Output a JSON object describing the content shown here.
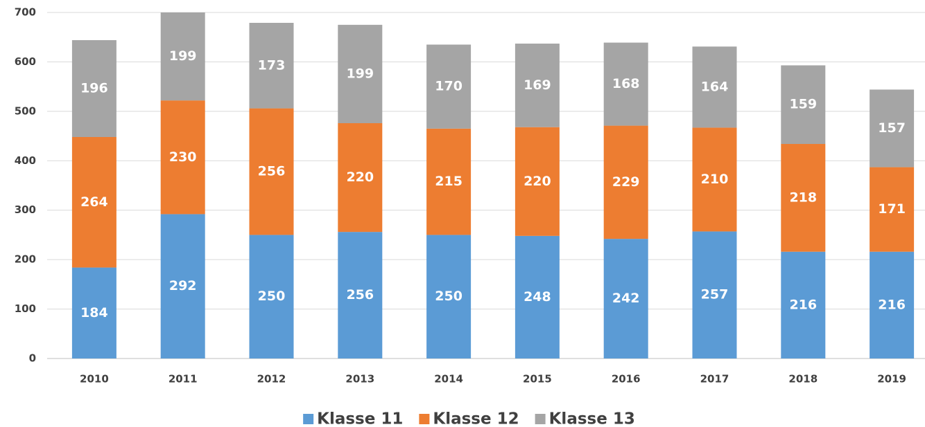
{
  "chart_data": {
    "type": "bar",
    "stacked": true,
    "categories": [
      "2010",
      "2011",
      "2012",
      "2013",
      "2014",
      "2015",
      "2016",
      "2017",
      "2018",
      "2019"
    ],
    "series": [
      {
        "name": "Klasse 11",
        "color": "#5b9bd5",
        "values": [
          184,
          292,
          250,
          256,
          250,
          248,
          242,
          257,
          216,
          216
        ]
      },
      {
        "name": "Klasse 12",
        "color": "#ed7d31",
        "values": [
          264,
          230,
          256,
          220,
          215,
          220,
          229,
          210,
          218,
          171
        ]
      },
      {
        "name": "Klasse 13",
        "color": "#a5a5a5",
        "values": [
          196,
          199,
          173,
          199,
          170,
          169,
          168,
          164,
          159,
          157
        ]
      }
    ],
    "ylim": [
      0,
      700
    ],
    "yticks": [
      0,
      100,
      200,
      300,
      400,
      500,
      600,
      700
    ],
    "grid": true,
    "legend": "bottom"
  }
}
